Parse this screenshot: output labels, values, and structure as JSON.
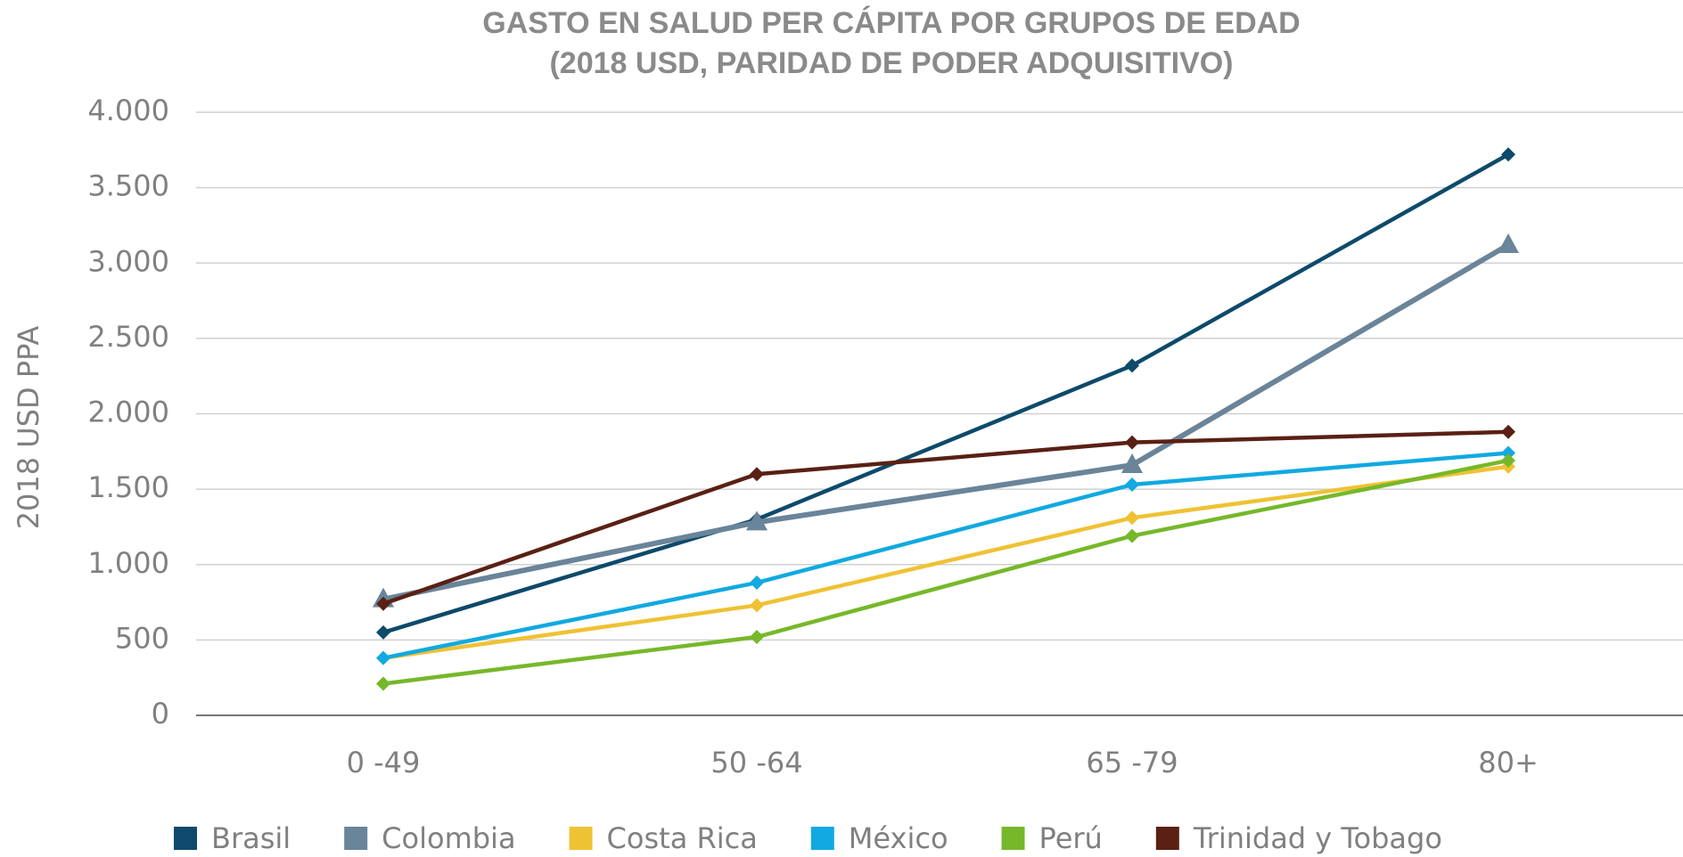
{
  "chart_data": {
    "type": "line",
    "title": "GASTO EN SALUD PER CÁPITA POR GRUPOS DE EDAD",
    "subtitle": "(2018 USD, PARIDAD DE PODER ADQUISITIVO)",
    "y_label": "2018 USD PPA",
    "categories": [
      "0 -49",
      "50 -64",
      "65 -79",
      "80+"
    ],
    "series": [
      {
        "name": "Brasil",
        "color": "#0d4a6b",
        "marker": "diamond",
        "values": [
          550,
          1300,
          2320,
          3720
        ]
      },
      {
        "name": "Colombia",
        "color": "#6a8499",
        "marker": "triangle",
        "values": [
          770,
          1280,
          1660,
          3120
        ]
      },
      {
        "name": "Costa Rica",
        "color": "#efc234",
        "marker": "diamond",
        "values": [
          380,
          730,
          1310,
          1650
        ]
      },
      {
        "name": "México",
        "color": "#11a9e1",
        "marker": "diamond",
        "values": [
          380,
          880,
          1530,
          1740
        ]
      },
      {
        "name": "Perú",
        "color": "#76b82a",
        "marker": "diamond",
        "values": [
          210,
          520,
          1190,
          1690
        ]
      },
      {
        "name": "Trinidad y Tobago",
        "color": "#5a2014",
        "marker": "diamond",
        "values": [
          740,
          1600,
          1810,
          1880
        ]
      }
    ],
    "ylim": [
      0,
      4000
    ],
    "yticks": [
      0,
      500,
      {
        "value": 1000,
        "label": "1.000"
      },
      {
        "value": 1500,
        "label": "1.500"
      },
      {
        "value": 2000,
        "label": "2.000"
      },
      {
        "value": 2500,
        "label": "2.500"
      },
      {
        "value": 3000,
        "label": "3.000"
      },
      {
        "value": 3500,
        "label": "3.500"
      },
      {
        "value": 4000,
        "label": "4.000"
      }
    ],
    "grid": true,
    "legend": "bottom"
  }
}
